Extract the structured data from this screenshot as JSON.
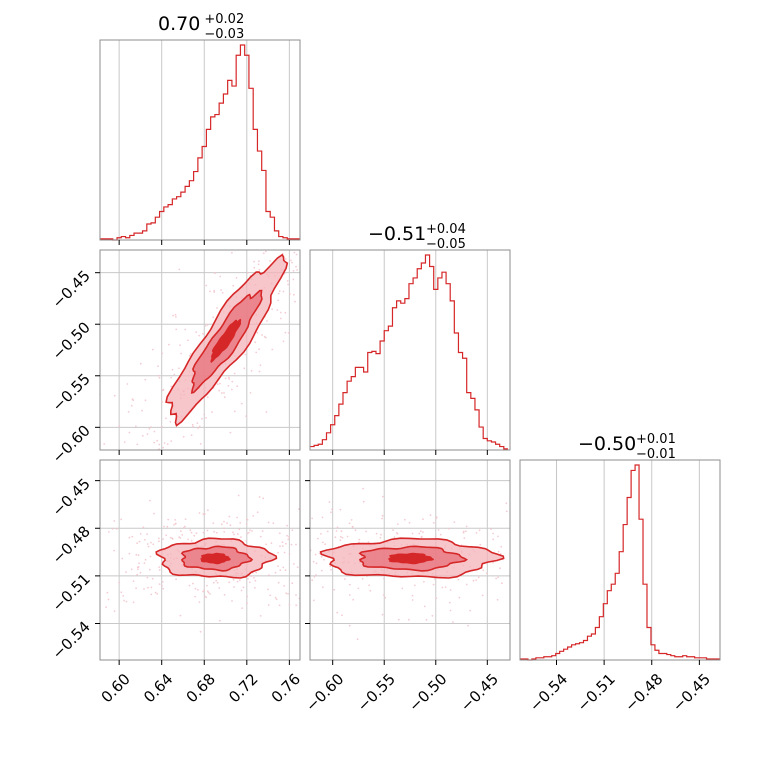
{
  "colors": {
    "accent": "#d62728",
    "fill_dark": "#e8707a",
    "fill_light": "#f4b3b8",
    "points": "#f2c4cc",
    "grid": "#c8c8c8",
    "frame": "#8c8c8c"
  },
  "chart_data": {
    "type": "corner",
    "grid": true,
    "params": [
      {
        "median": "0.70",
        "plus": "+0.02",
        "minus": "−0.03",
        "range": [
          0.582,
          0.77
        ],
        "ticks": [
          0.6,
          0.64,
          0.68,
          0.72,
          0.76
        ],
        "tick_labels": [
          "0.60",
          "0.64",
          "0.68",
          "0.72",
          "0.76"
        ]
      },
      {
        "median": "−0.51",
        "plus": "+0.04",
        "minus": "−0.05",
        "range": [
          -0.622,
          -0.428
        ],
        "ticks": [
          -0.6,
          -0.55,
          -0.5,
          -0.45
        ],
        "tick_labels": [
          "−0.60",
          "−0.55",
          "−0.50",
          "−0.45"
        ]
      },
      {
        "median": "−0.50",
        "plus": "+0.01",
        "minus": "−0.01",
        "range": [
          -0.563,
          -0.437
        ],
        "ticks": [
          -0.54,
          -0.51,
          -0.48,
          -0.45
        ],
        "tick_labels": [
          "−0.54",
          "−0.51",
          "−0.48",
          "−0.45"
        ]
      }
    ],
    "histograms": [
      {
        "param": 0,
        "bins": [
          0.582,
          0.586,
          0.59,
          0.594,
          0.598,
          0.602,
          0.606,
          0.61,
          0.614,
          0.618,
          0.622,
          0.626,
          0.63,
          0.634,
          0.638,
          0.642,
          0.646,
          0.65,
          0.654,
          0.658,
          0.662,
          0.666,
          0.67,
          0.674,
          0.678,
          0.682,
          0.686,
          0.69,
          0.694,
          0.698,
          0.702,
          0.706,
          0.71,
          0.714,
          0.718,
          0.722,
          0.726,
          0.73,
          0.734,
          0.738,
          0.742,
          0.746,
          0.75,
          0.754,
          0.758,
          0.762,
          0.766,
          0.77
        ],
        "counts": [
          1,
          1,
          1,
          0,
          2,
          3,
          2,
          4,
          6,
          6,
          8,
          14,
          15,
          20,
          25,
          29,
          31,
          36,
          38,
          42,
          47,
          52,
          60,
          72,
          82,
          97,
          108,
          110,
          120,
          128,
          140,
          135,
          162,
          171,
          162,
          133,
          97,
          78,
          61,
          25,
          20,
          8,
          3,
          2,
          1,
          1,
          1
        ]
      },
      {
        "param": 1,
        "bins": [
          -0.622,
          -0.618,
          -0.614,
          -0.61,
          -0.606,
          -0.602,
          -0.598,
          -0.594,
          -0.59,
          -0.586,
          -0.582,
          -0.578,
          -0.574,
          -0.57,
          -0.566,
          -0.562,
          -0.558,
          -0.554,
          -0.55,
          -0.546,
          -0.542,
          -0.538,
          -0.534,
          -0.53,
          -0.526,
          -0.522,
          -0.518,
          -0.514,
          -0.51,
          -0.506,
          -0.502,
          -0.498,
          -0.494,
          -0.49,
          -0.486,
          -0.482,
          -0.478,
          -0.474,
          -0.47,
          -0.466,
          -0.462,
          -0.458,
          -0.454,
          -0.45,
          -0.446,
          -0.442,
          -0.438,
          -0.434,
          -0.43
        ],
        "counts": [
          3,
          4,
          5,
          9,
          15,
          22,
          30,
          40,
          50,
          60,
          64,
          72,
          72,
          68,
          85,
          86,
          84,
          95,
          104,
          108,
          124,
          130,
          128,
          132,
          145,
          150,
          158,
          163,
          170,
          160,
          140,
          150,
          155,
          145,
          130,
          102,
          85,
          80,
          50,
          45,
          35,
          20,
          10,
          8,
          7,
          5,
          3,
          1
        ]
      },
      {
        "param": 2,
        "bins": [
          -0.563,
          -0.5605,
          -0.558,
          -0.5555,
          -0.553,
          -0.5505,
          -0.548,
          -0.5455,
          -0.543,
          -0.5405,
          -0.538,
          -0.5355,
          -0.533,
          -0.5305,
          -0.528,
          -0.5255,
          -0.523,
          -0.5205,
          -0.518,
          -0.5155,
          -0.513,
          -0.5105,
          -0.508,
          -0.5055,
          -0.503,
          -0.5005,
          -0.498,
          -0.4955,
          -0.493,
          -0.4905,
          -0.488,
          -0.4855,
          -0.483,
          -0.4805,
          -0.478,
          -0.4755,
          -0.473,
          -0.4705,
          -0.468,
          -0.4655,
          -0.463,
          -0.4605,
          -0.458,
          -0.4555,
          -0.453,
          -0.4505,
          -0.448,
          -0.4455,
          -0.443,
          -0.4405,
          -0.437
        ],
        "counts": [
          1,
          1,
          0,
          1,
          2,
          2,
          3,
          3,
          4,
          6,
          8,
          10,
          12,
          14,
          15,
          16,
          18,
          22,
          24,
          30,
          40,
          52,
          64,
          70,
          80,
          100,
          125,
          150,
          175,
          180,
          130,
          70,
          30,
          14,
          9,
          6,
          6,
          5,
          4,
          3,
          3,
          4,
          3,
          3,
          2,
          2,
          2,
          1,
          1,
          1
        ]
      }
    ],
    "pairs": [
      {
        "x_param": 0,
        "y_param": 1,
        "center": [
          0.7,
          -0.515
        ],
        "angle_deg": 35,
        "semi_axes": [
          0.02,
          0.075
        ],
        "mask": "band",
        "levels": [
          {
            "scale": 1.0,
            "value": 0.39
          },
          {
            "scale": 0.6,
            "value": 0.86
          }
        ]
      },
      {
        "x_param": 0,
        "y_param": 2,
        "center": [
          0.69,
          -0.499
        ],
        "angle_deg": 0,
        "semi_axes": [
          0.035,
          0.008
        ],
        "mask": "none",
        "levels": [
          {
            "scale": 1.0,
            "value": 0.39
          },
          {
            "scale": 0.6,
            "value": 0.86
          }
        ]
      },
      {
        "x_param": 1,
        "y_param": 2,
        "center": [
          -0.525,
          -0.499
        ],
        "angle_deg": 0,
        "semi_axes": [
          0.055,
          0.008
        ],
        "mask": "none",
        "levels": [
          {
            "scale": 1.0,
            "value": 0.39
          },
          {
            "scale": 0.6,
            "value": 0.86
          }
        ]
      }
    ]
  }
}
